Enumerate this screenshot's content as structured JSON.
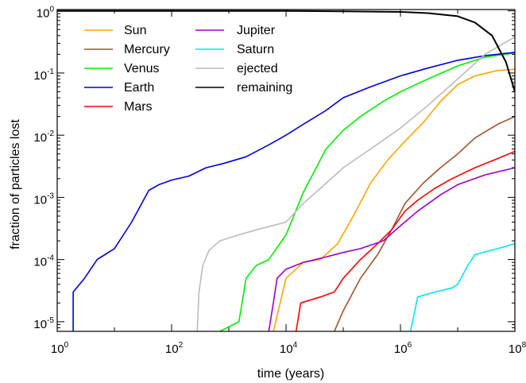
{
  "chart_data": {
    "type": "line",
    "title": "",
    "xlabel": "time (years)",
    "ylabel": "fraction of particles lost",
    "xscale": "log",
    "yscale": "log",
    "xlim": [
      1,
      100000000
    ],
    "ylim": [
      7e-06,
      1.05
    ],
    "grid": false,
    "legend_position": "top-left",
    "x_ticks": [
      {
        "value": 1,
        "base": "10",
        "exp": "0"
      },
      {
        "value": 100,
        "base": "10",
        "exp": "2"
      },
      {
        "value": 10000,
        "base": "10",
        "exp": "4"
      },
      {
        "value": 1000000,
        "base": "10",
        "exp": "6"
      },
      {
        "value": 100000000,
        "base": "10",
        "exp": "8"
      }
    ],
    "y_ticks": [
      {
        "value": 1,
        "base": "10",
        "exp": "0"
      },
      {
        "value": 0.1,
        "base": "10",
        "exp": "-1"
      },
      {
        "value": 0.01,
        "base": "10",
        "exp": "-2"
      },
      {
        "value": 0.001,
        "base": "10",
        "exp": "-3"
      },
      {
        "value": 0.0001,
        "base": "10",
        "exp": "-4"
      },
      {
        "value": 1e-05,
        "base": "10",
        "exp": "-5"
      }
    ],
    "series": [
      {
        "name": "Sun",
        "color": "#ffa500",
        "points": [
          [
            6000,
            7e-06
          ],
          [
            10000,
            5e-05
          ],
          [
            20000,
            9e-05
          ],
          [
            40000,
            0.0001
          ],
          [
            80000,
            0.00018
          ],
          [
            150000,
            0.0005
          ],
          [
            300000,
            0.0017
          ],
          [
            600000,
            0.004
          ],
          [
            1200000,
            0.008
          ],
          [
            2500000,
            0.016
          ],
          [
            5000000,
            0.035
          ],
          [
            10000000,
            0.065
          ],
          [
            20000000,
            0.09
          ],
          [
            50000000,
            0.11
          ],
          [
            100000000,
            0.115
          ]
        ]
      },
      {
        "name": "Mercury",
        "color": "#a0522d",
        "points": [
          [
            70000,
            7e-06
          ],
          [
            100000,
            1.5e-05
          ],
          [
            200000,
            5e-05
          ],
          [
            400000,
            0.00012
          ],
          [
            700000,
            0.0003
          ],
          [
            1200000,
            0.0008
          ],
          [
            2500000,
            0.0017
          ],
          [
            5000000,
            0.003
          ],
          [
            10000000,
            0.005
          ],
          [
            20000000,
            0.009
          ],
          [
            50000000,
            0.015
          ],
          [
            100000000,
            0.02
          ]
        ]
      },
      {
        "name": "Venus",
        "color": "#00ee00",
        "points": [
          [
            700,
            7e-06
          ],
          [
            1500,
            1e-05
          ],
          [
            2000,
            5e-05
          ],
          [
            3000,
            8e-05
          ],
          [
            5000,
            0.0001
          ],
          [
            10000,
            0.00025
          ],
          [
            20000,
            0.0012
          ],
          [
            50000,
            0.006
          ],
          [
            100000,
            0.012
          ],
          [
            200000,
            0.02
          ],
          [
            500000,
            0.035
          ],
          [
            1000000,
            0.05
          ],
          [
            3000000,
            0.08
          ],
          [
            10000000,
            0.13
          ],
          [
            30000000,
            0.18
          ],
          [
            100000000,
            0.21
          ]
        ]
      },
      {
        "name": "Earth",
        "color": "#0000dd",
        "points": [
          [
            1.9,
            7e-06
          ],
          [
            1.9,
            3e-05
          ],
          [
            3,
            5e-05
          ],
          [
            5,
            0.0001
          ],
          [
            10,
            0.00015
          ],
          [
            20,
            0.0004
          ],
          [
            30,
            0.0008
          ],
          [
            40,
            0.0013
          ],
          [
            60,
            0.0016
          ],
          [
            100,
            0.0019
          ],
          [
            200,
            0.0022
          ],
          [
            400,
            0.003
          ],
          [
            800,
            0.0035
          ],
          [
            2000,
            0.0045
          ],
          [
            5000,
            0.007
          ],
          [
            10000,
            0.01
          ],
          [
            20000,
            0.015
          ],
          [
            50000,
            0.025
          ],
          [
            100000,
            0.04
          ],
          [
            300000,
            0.06
          ],
          [
            1000000,
            0.09
          ],
          [
            3000000,
            0.12
          ],
          [
            10000000,
            0.16
          ],
          [
            30000000,
            0.19
          ],
          [
            100000000,
            0.215
          ]
        ]
      },
      {
        "name": "Mars",
        "color": "#ff0000",
        "points": [
          [
            15000,
            7e-06
          ],
          [
            18000,
            2e-05
          ],
          [
            40000,
            2.5e-05
          ],
          [
            70000,
            3e-05
          ],
          [
            100000,
            5e-05
          ],
          [
            200000,
            0.0001
          ],
          [
            400000,
            0.00018
          ],
          [
            700000,
            0.0003
          ],
          [
            1200000,
            0.0006
          ],
          [
            2000000,
            0.0009
          ],
          [
            4000000,
            0.0014
          ],
          [
            8000000,
            0.002
          ],
          [
            20000000,
            0.003
          ],
          [
            50000000,
            0.0042
          ],
          [
            100000000,
            0.0055
          ]
        ]
      },
      {
        "name": "Jupiter",
        "color": "#9a00cc",
        "points": [
          [
            5000,
            7e-06
          ],
          [
            6000,
            2e-05
          ],
          [
            7000,
            5e-05
          ],
          [
            10000,
            7e-05
          ],
          [
            20000,
            9e-05
          ],
          [
            50000,
            0.00011
          ],
          [
            100000,
            0.00013
          ],
          [
            200000,
            0.00015
          ],
          [
            500000,
            0.0002
          ],
          [
            1000000,
            0.00035
          ],
          [
            2000000,
            0.0006
          ],
          [
            5000000,
            0.0011
          ],
          [
            10000000,
            0.0016
          ],
          [
            30000000,
            0.0023
          ],
          [
            100000000,
            0.003
          ]
        ]
      },
      {
        "name": "Saturn",
        "color": "#00e5ee",
        "points": [
          [
            1500000,
            7e-06
          ],
          [
            2000000,
            2.5e-05
          ],
          [
            4000000,
            3e-05
          ],
          [
            8000000,
            3.5e-05
          ],
          [
            10000000,
            4e-05
          ],
          [
            15000000,
            8e-05
          ],
          [
            20000000,
            0.00012
          ],
          [
            50000000,
            0.00015
          ],
          [
            100000000,
            0.00018
          ]
        ]
      },
      {
        "name": "ejected",
        "color": "#bbbbbb",
        "points": [
          [
            280,
            7e-06
          ],
          [
            300,
            3e-05
          ],
          [
            350,
            8e-05
          ],
          [
            450,
            0.00014
          ],
          [
            700,
            0.0002
          ],
          [
            1500,
            0.00025
          ],
          [
            3000,
            0.0003
          ],
          [
            10000,
            0.0004
          ],
          [
            20000,
            0.0008
          ],
          [
            40000,
            0.0014
          ],
          [
            100000,
            0.003
          ],
          [
            300000,
            0.006
          ],
          [
            1000000,
            0.013
          ],
          [
            3000000,
            0.03
          ],
          [
            10000000,
            0.08
          ],
          [
            30000000,
            0.2
          ],
          [
            100000000,
            0.38
          ]
        ]
      },
      {
        "name": "remaining",
        "color": "#000000",
        "points": [
          [
            1,
            1
          ],
          [
            1000,
            1
          ],
          [
            10000,
            0.995
          ],
          [
            100000,
            0.985
          ],
          [
            1000000,
            0.96
          ],
          [
            3000000,
            0.92
          ],
          [
            10000000,
            0.82
          ],
          [
            20000000,
            0.65
          ],
          [
            40000000,
            0.4
          ],
          [
            70000000,
            0.15
          ],
          [
            100000000,
            0.05
          ]
        ]
      }
    ]
  }
}
